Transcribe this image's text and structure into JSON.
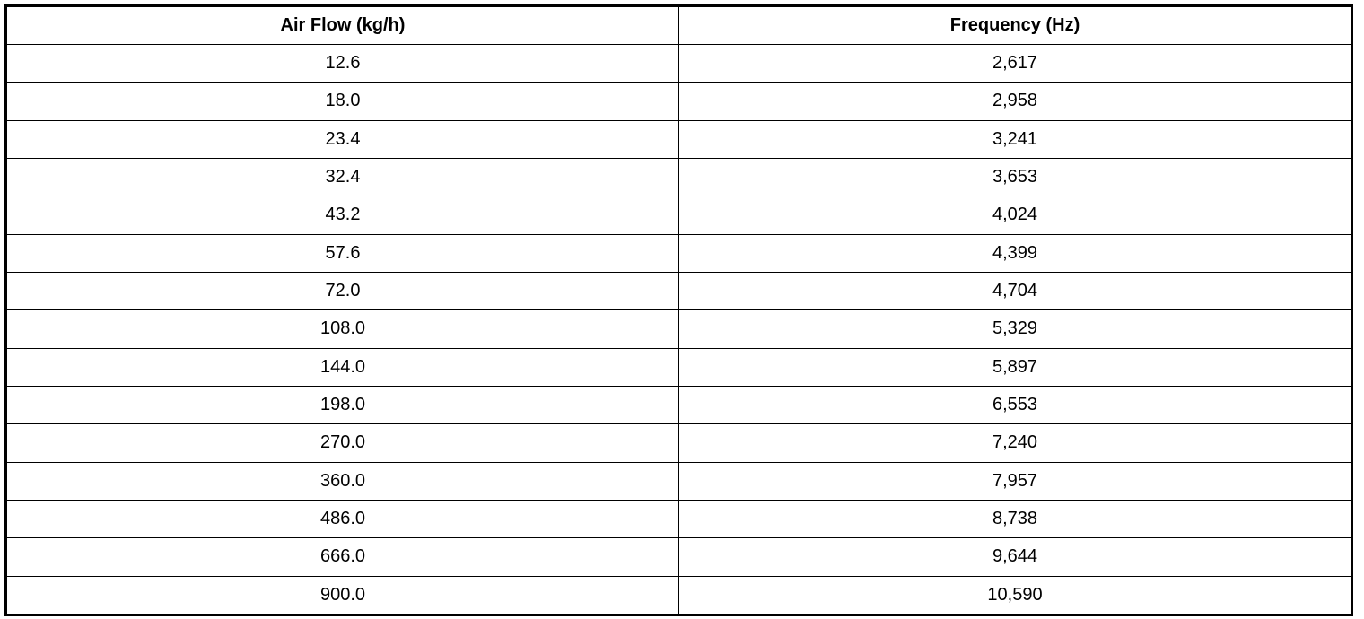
{
  "table": {
    "headers": [
      "Air Flow (kg/h)",
      "Frequency (Hz)"
    ],
    "rows": [
      [
        "12.6",
        "2,617"
      ],
      [
        "18.0",
        "2,958"
      ],
      [
        "23.4",
        "3,241"
      ],
      [
        "32.4",
        "3,653"
      ],
      [
        "43.2",
        "4,024"
      ],
      [
        "57.6",
        "4,399"
      ],
      [
        "72.0",
        "4,704"
      ],
      [
        "108.0",
        "5,329"
      ],
      [
        "144.0",
        "5,897"
      ],
      [
        "198.0",
        "6,553"
      ],
      [
        "270.0",
        "7,240"
      ],
      [
        "360.0",
        "7,957"
      ],
      [
        "486.0",
        "8,738"
      ],
      [
        "666.0",
        "9,644"
      ],
      [
        "900.0",
        "10,590"
      ]
    ]
  }
}
